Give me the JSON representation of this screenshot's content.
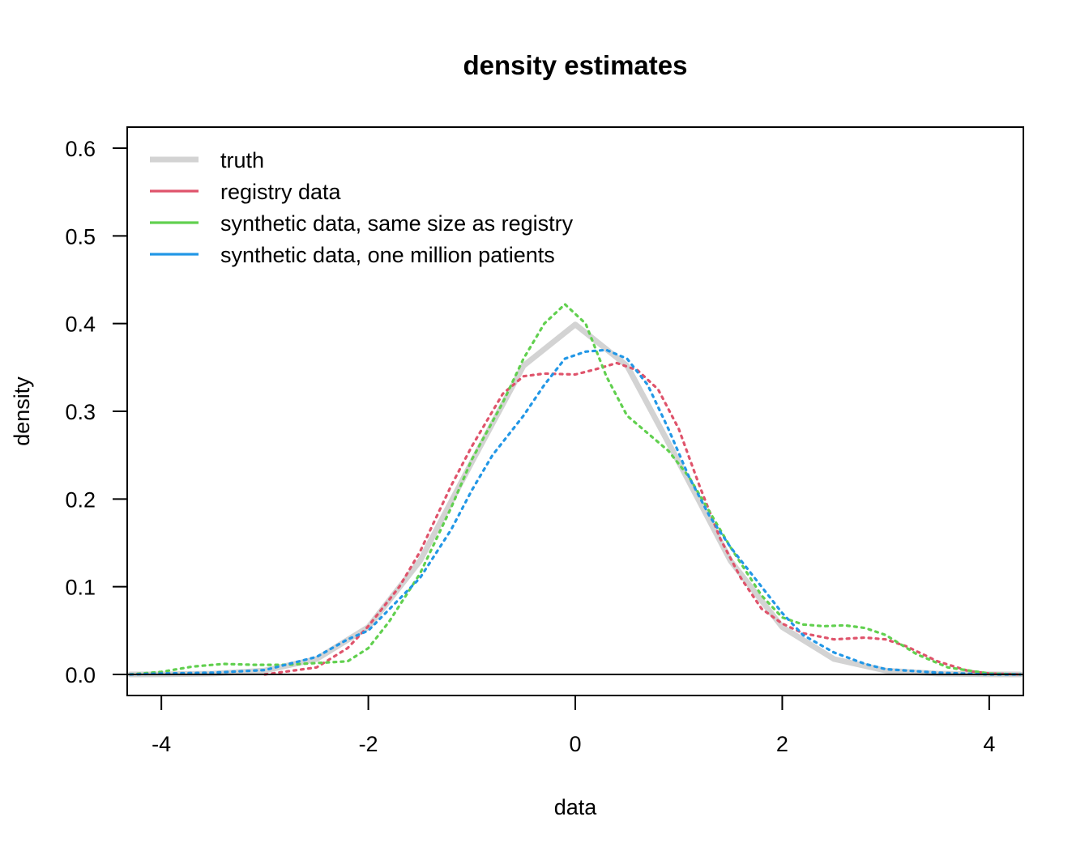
{
  "chart_data": {
    "type": "line",
    "title": "density estimates",
    "xlabel": "data",
    "ylabel": "density",
    "xlim": [
      -4.33,
      4.33
    ],
    "ylim": [
      -0.024,
      0.624
    ],
    "xticks": [
      -4,
      -2,
      0,
      2,
      4
    ],
    "yticks": [
      0.0,
      0.1,
      0.2,
      0.3,
      0.4,
      0.5,
      0.6
    ],
    "xtick_labels": [
      "-4",
      "-2",
      "0",
      "2",
      "4"
    ],
    "ytick_labels": [
      "0.0",
      "0.1",
      "0.2",
      "0.3",
      "0.4",
      "0.5",
      "0.6"
    ],
    "grid": false,
    "legend_position": "top-left",
    "baseline": 0,
    "series": [
      {
        "name": "truth",
        "color": "#D3D3D3",
        "style": "solid",
        "x": [
          -4.3,
          -4.0,
          -3.5,
          -3.0,
          -2.5,
          -2.0,
          -1.5,
          -1.0,
          -0.5,
          0.0,
          0.5,
          1.0,
          1.5,
          2.0,
          2.5,
          3.0,
          3.5,
          4.0,
          4.3
        ],
        "y": [
          0.0,
          0.0001,
          0.0009,
          0.0044,
          0.0175,
          0.054,
          0.1295,
          0.242,
          0.352,
          0.399,
          0.352,
          0.242,
          0.1295,
          0.054,
          0.0175,
          0.0044,
          0.0009,
          0.0001,
          0.0
        ]
      },
      {
        "name": "registry data",
        "color": "#DF536B",
        "style": "dotted",
        "x": [
          -3.0,
          -2.5,
          -2.2,
          -2.0,
          -1.7,
          -1.5,
          -1.2,
          -1.0,
          -0.7,
          -0.5,
          -0.3,
          0.0,
          0.2,
          0.4,
          0.6,
          0.8,
          1.0,
          1.2,
          1.4,
          1.6,
          1.8,
          2.0,
          2.2,
          2.5,
          2.8,
          3.0,
          3.2,
          3.5,
          3.8,
          4.0,
          4.3
        ],
        "y": [
          0.0,
          0.008,
          0.03,
          0.055,
          0.1,
          0.14,
          0.215,
          0.26,
          0.32,
          0.34,
          0.343,
          0.342,
          0.348,
          0.355,
          0.347,
          0.325,
          0.28,
          0.215,
          0.155,
          0.11,
          0.075,
          0.058,
          0.047,
          0.04,
          0.042,
          0.04,
          0.032,
          0.015,
          0.004,
          0.001,
          0.0
        ]
      },
      {
        "name": "synthetic data, same size as registry",
        "color": "#61D04F",
        "style": "dotted",
        "x": [
          -4.3,
          -4.0,
          -3.7,
          -3.4,
          -3.1,
          -2.8,
          -2.5,
          -2.2,
          -2.0,
          -1.8,
          -1.5,
          -1.2,
          -1.0,
          -0.7,
          -0.5,
          -0.3,
          -0.1,
          0.1,
          0.3,
          0.5,
          0.7,
          0.9,
          1.1,
          1.3,
          1.5,
          1.8,
          2.0,
          2.2,
          2.4,
          2.6,
          2.8,
          3.0,
          3.3,
          3.6,
          4.0,
          4.3
        ],
        "y": [
          0.0,
          0.003,
          0.009,
          0.012,
          0.011,
          0.011,
          0.013,
          0.015,
          0.03,
          0.06,
          0.115,
          0.19,
          0.245,
          0.31,
          0.36,
          0.4,
          0.422,
          0.4,
          0.34,
          0.295,
          0.275,
          0.255,
          0.225,
          0.185,
          0.145,
          0.09,
          0.065,
          0.057,
          0.055,
          0.056,
          0.053,
          0.045,
          0.023,
          0.008,
          0.001,
          0.0
        ]
      },
      {
        "name": "synthetic data, one million patients",
        "color": "#2297E6",
        "style": "dotted",
        "x": [
          -4.3,
          -4.0,
          -3.5,
          -3.0,
          -2.5,
          -2.2,
          -2.0,
          -1.5,
          -1.2,
          -1.0,
          -0.8,
          -0.5,
          -0.3,
          -0.1,
          0.1,
          0.3,
          0.5,
          0.7,
          0.9,
          1.1,
          1.3,
          1.5,
          1.8,
          2.0,
          2.2,
          2.5,
          2.8,
          3.0,
          3.5,
          4.0,
          4.3
        ],
        "y": [
          0.0,
          0.001,
          0.002,
          0.005,
          0.02,
          0.04,
          0.05,
          0.11,
          0.165,
          0.21,
          0.25,
          0.295,
          0.33,
          0.36,
          0.368,
          0.37,
          0.36,
          0.33,
          0.28,
          0.225,
          0.18,
          0.145,
          0.1,
          0.07,
          0.045,
          0.025,
          0.012,
          0.006,
          0.002,
          0.0,
          0.0
        ]
      }
    ]
  }
}
